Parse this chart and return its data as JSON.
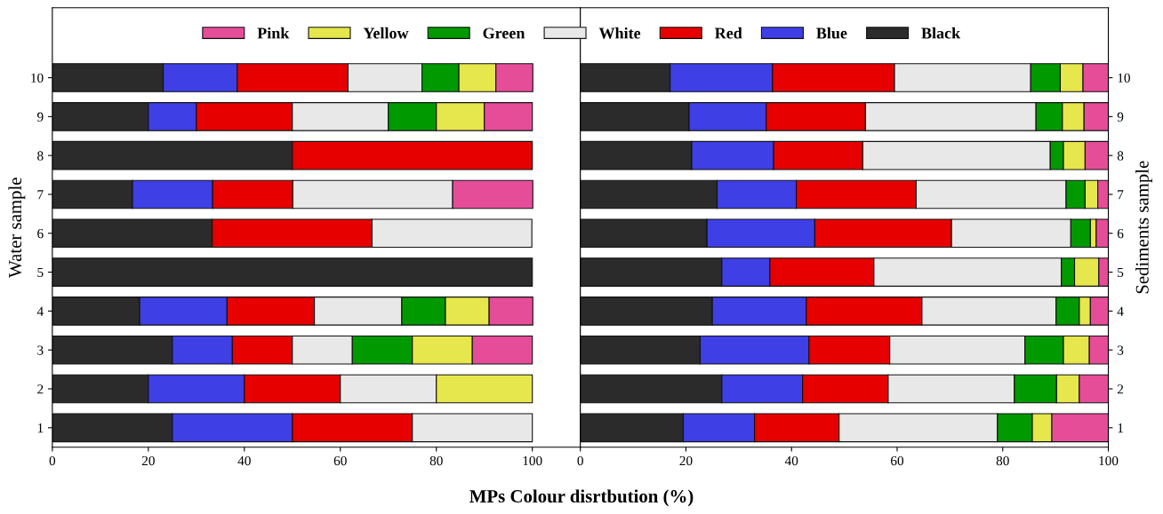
{
  "chart_data": [
    {
      "type": "bar",
      "orientation": "horizontal",
      "stacked": true,
      "legend": "top",
      "xlabel": "MPs Colour disrtbution (%)",
      "ylabel": "Water sample",
      "categories": [
        "10",
        "9",
        "8",
        "7",
        "6",
        "5",
        "4",
        "3",
        "2",
        "1"
      ],
      "xlim": [
        0,
        110
      ],
      "xticks": [
        0,
        20,
        40,
        60,
        80,
        100
      ],
      "series": [
        {
          "name": "Black",
          "color": "#2b2b2b",
          "values": [
            23.1,
            20,
            50,
            16.7,
            33.3,
            100,
            18.2,
            25,
            20,
            25
          ]
        },
        {
          "name": "Blue",
          "color": "#3f3fe6",
          "values": [
            15.4,
            10,
            0,
            16.7,
            0,
            0,
            18.2,
            12.5,
            20,
            25
          ]
        },
        {
          "name": "Red",
          "color": "#e60000",
          "values": [
            23.1,
            20,
            50,
            16.7,
            33.3,
            0,
            18.2,
            12.5,
            20,
            25
          ]
        },
        {
          "name": "White",
          "color": "#e8e8e8",
          "values": [
            15.4,
            20,
            0,
            33.3,
            33.3,
            0,
            18.2,
            12.5,
            20,
            25
          ]
        },
        {
          "name": "Green",
          "color": "#009900",
          "values": [
            7.7,
            10,
            0,
            0,
            0,
            0,
            9.1,
            12.5,
            0,
            0
          ]
        },
        {
          "name": "Yellow",
          "color": "#e6e64d",
          "values": [
            7.7,
            10,
            0,
            0,
            0,
            0,
            9.1,
            12.5,
            20,
            0
          ]
        },
        {
          "name": "Pink",
          "color": "#e64d99",
          "values": [
            7.7,
            10,
            0,
            16.7,
            0,
            0,
            9.1,
            12.5,
            0,
            0
          ]
        }
      ]
    },
    {
      "type": "bar",
      "orientation": "horizontal",
      "stacked": true,
      "ylabel": "Sediments sample",
      "categories": [
        "10",
        "9",
        "8",
        "7",
        "6",
        "5",
        "4",
        "3",
        "2",
        "1"
      ],
      "xlim": [
        0,
        100
      ],
      "xticks": [
        0,
        20,
        40,
        60,
        80,
        100
      ],
      "series": [
        {
          "color": "#2b2b2b",
          "values": [
            17.0,
            20.6,
            21.1,
            25.9,
            24.0,
            26.8,
            25.0,
            22.7,
            26.8,
            19.5
          ]
        },
        {
          "color": "#3f3fe6",
          "values": [
            19.4,
            14.6,
            15.5,
            15.0,
            20.4,
            9.1,
            17.8,
            20.6,
            15.3,
            13.5
          ]
        },
        {
          "color": "#e60000",
          "values": [
            23.1,
            18.8,
            16.9,
            22.7,
            25.9,
            19.7,
            21.9,
            15.3,
            16.2,
            16.0
          ]
        },
        {
          "color": "#e8e8e8",
          "values": [
            25.8,
            32.3,
            35.5,
            28.4,
            22.6,
            35.5,
            25.4,
            25.6,
            23.9,
            30.0
          ]
        },
        {
          "color": "#009900",
          "values": [
            5.6,
            5.0,
            2.5,
            3.6,
            3.7,
            2.5,
            4.4,
            7.3,
            8.0,
            6.6
          ]
        },
        {
          "color": "#e6e64d",
          "values": [
            4.3,
            4.1,
            4.1,
            2.4,
            1.1,
            4.6,
            2.1,
            4.9,
            4.3,
            3.7
          ]
        },
        {
          "color": "#e64d99",
          "values": [
            4.8,
            4.6,
            4.4,
            2.0,
            2.3,
            1.8,
            3.4,
            3.6,
            5.5,
            10.7
          ]
        }
      ]
    }
  ]
}
